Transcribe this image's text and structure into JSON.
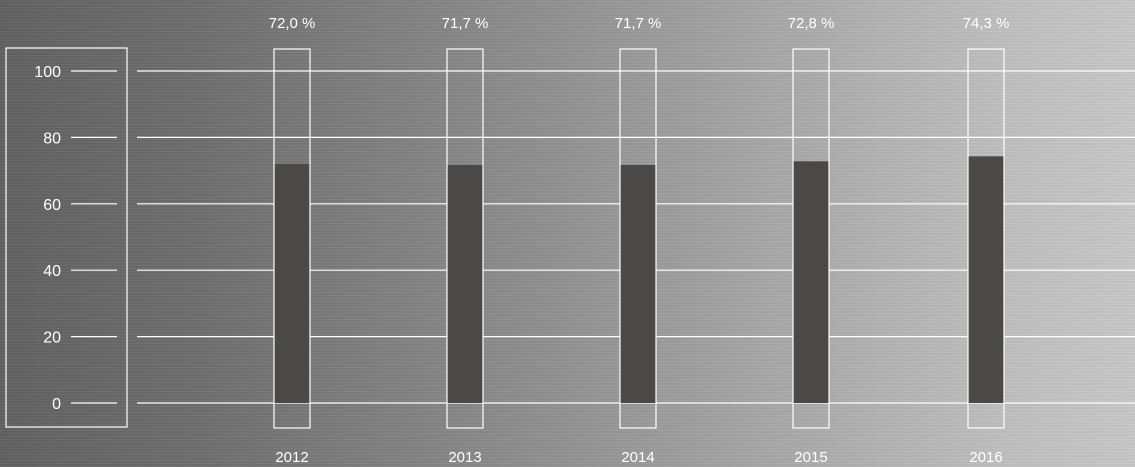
{
  "chart_data": {
    "type": "bar",
    "title": "",
    "xlabel": "",
    "ylabel": "",
    "categories": [
      "2012",
      "2013",
      "2014",
      "2015",
      "2016"
    ],
    "series": [
      {
        "values": [
          72.0,
          71.7,
          71.7,
          72.8,
          74.3
        ],
        "data_labels": [
          "72,0 %",
          "71,7 %",
          "71,7 %",
          "72,8 %",
          "74,3 %"
        ]
      }
    ],
    "ylim": [
      0,
      100
    ],
    "yticks": [
      0,
      20,
      40,
      60,
      80,
      100
    ],
    "grid": true,
    "colors": {
      "bar_fill": "#4a4947",
      "outline": "#ffffff",
      "grid": "#ffffff",
      "text": "#ffffff"
    }
  }
}
